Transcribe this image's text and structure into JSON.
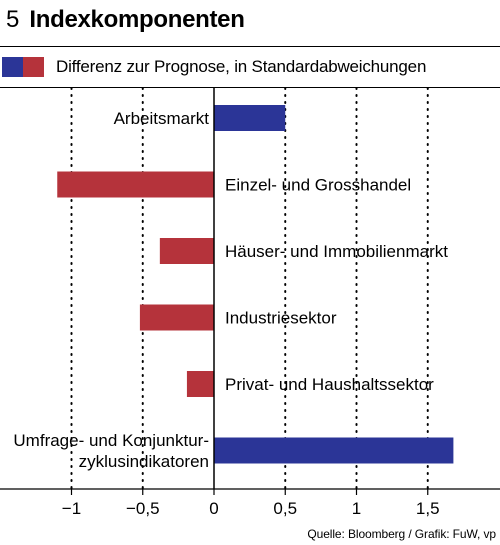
{
  "header": {
    "figure_number": "5",
    "title": "Indexkomponenten"
  },
  "legend": {
    "text": "Differenz zur Prognose, in Standardabweichungen"
  },
  "source": "Quelle: Bloomberg / Grafik: FuW, vp",
  "colors": {
    "positive": "#2b3597",
    "negative": "#b5333b",
    "grid": "#000000"
  },
  "chart_data": {
    "type": "bar",
    "orientation": "horizontal",
    "categories": [
      [
        "Arbeitsmarkt"
      ],
      [
        "Einzel- und Grosshandel"
      ],
      [
        "Häuser- und Immobilienmarkt"
      ],
      [
        "Industriesektor"
      ],
      [
        "Privat- und Haushaltssektor"
      ],
      [
        "Umfrage- und Konjunktur-",
        "zyklusindikatoren"
      ]
    ],
    "values": [
      0.5,
      -1.1,
      -0.38,
      -0.52,
      -0.19,
      1.68
    ],
    "xlim": [
      -1.5,
      2.0
    ],
    "xticks": [
      -1,
      -0.5,
      0,
      0.5,
      1,
      1.5
    ],
    "xtick_labels": [
      "−1",
      "−0,5",
      "0",
      "0,5",
      "1",
      "1,5"
    ],
    "grid": "vertical dotted"
  }
}
